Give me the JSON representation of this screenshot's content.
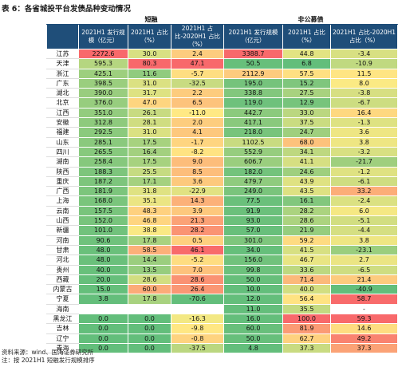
{
  "header": {
    "title": "表 6：各省城投平台发债品种变动情况"
  },
  "table": {
    "groups": [
      "短融",
      "非公募债"
    ],
    "columns": [
      "2021H1 发行规模（亿元）",
      "2021H1 占比（%）",
      "2021H1 占比-2020H1 占比（%）",
      "2021H1 发行规模（亿元）",
      "2021H1 占比（%）",
      "2021H1 占比-2020H1 占比（%）"
    ],
    "rows": [
      [
        "江苏",
        "2272.6",
        "30.0",
        "2.4",
        "3388.7",
        "44.8",
        "-3.4"
      ],
      [
        "天津",
        "595.3",
        "80.3",
        "47.1",
        "50.5",
        "6.8",
        "-10.9"
      ],
      [
        "浙江",
        "425.1",
        "11.6",
        "-5.7",
        "2112.9",
        "57.5",
        "11.5"
      ],
      [
        "广东",
        "398.5",
        "31.0",
        "-32.5",
        "195.0",
        "15.2",
        "8.0"
      ],
      [
        "湖北",
        "390.0",
        "31.7",
        "2.2",
        "338.8",
        "27.5",
        "-3.8"
      ],
      [
        "北京",
        "376.0",
        "47.0",
        "6.5",
        "119.0",
        "12.9",
        "-6.7"
      ],
      [
        "江西",
        "351.0",
        "26.1",
        "-11.0",
        "442.7",
        "33.0",
        "16.4"
      ],
      [
        "安徽",
        "312.8",
        "28.1",
        "2.0",
        "417.1",
        "37.5",
        "-1.3"
      ],
      [
        "福建",
        "292.5",
        "31.0",
        "4.1",
        "218.0",
        "24.7",
        "3.6"
      ],
      [
        "山东",
        "285.1",
        "17.5",
        "-1.7",
        "1102.5",
        "68.0",
        "3.8"
      ],
      [
        "四川",
        "265.5",
        "16.4",
        "-8.2",
        "552.9",
        "34.1",
        "-3.2"
      ],
      [
        "湖南",
        "258.4",
        "17.5",
        "9.0",
        "606.7",
        "41.1",
        "-21.7"
      ],
      [
        "陕西",
        "188.3",
        "25.5",
        "8.5",
        "182.0",
        "24.6",
        "-1.2"
      ],
      [
        "重庆",
        "187.2",
        "17.1",
        "3.6",
        "479.7",
        "43.9",
        "-6.1"
      ],
      [
        "广西",
        "181.9",
        "31.8",
        "-22.9",
        "249.0",
        "43.5",
        "33.2"
      ],
      [
        "上海",
        "168.0",
        "35.1",
        "14.3",
        "77.5",
        "16.1",
        "-2.4"
      ],
      [
        "云南",
        "157.5",
        "48.3",
        "3.9",
        "91.9",
        "28.2",
        "6.0"
      ],
      [
        "山西",
        "152.0",
        "46.8",
        "21.3",
        "93.0",
        "28.6",
        "-5.1"
      ],
      [
        "新疆",
        "101.0",
        "38.8",
        "28.2",
        "57.0",
        "21.9",
        "-4.4"
      ],
      [
        "河南",
        "90.6",
        "17.8",
        "0.5",
        "301.0",
        "59.2",
        "3.8"
      ],
      [
        "甘肃",
        "48.0",
        "58.5",
        "46.1",
        "34.0",
        "41.5",
        "-23.1"
      ],
      [
        "河北",
        "48.0",
        "14.4",
        "-5.2",
        "156.0",
        "46.7",
        "2.7"
      ],
      [
        "贵州",
        "40.0",
        "13.5",
        "7.0",
        "99.8",
        "33.6",
        "-6.5"
      ],
      [
        "西藏",
        "20.0",
        "28.6",
        "28.6",
        "50.0",
        "71.4",
        "21.4"
      ],
      [
        "内蒙古",
        "15.0",
        "60.0",
        "26.4",
        "10.0",
        "40.0",
        "-40.9"
      ],
      [
        "宁夏",
        "3.8",
        "17.8",
        "-70.6",
        "12.0",
        "56.4",
        "58.7"
      ],
      [
        "海南",
        null,
        null,
        null,
        "11.0",
        "35.5",
        "-"
      ],
      [
        "黑龙江",
        "0.0",
        "0.0",
        "-16.3",
        "16.0",
        "100.0",
        "59.3"
      ],
      [
        "吉林",
        "0.0",
        "0.0",
        "-9.8",
        "60.0",
        "81.9",
        "14.6"
      ],
      [
        "辽宁",
        "0.0",
        "0.0",
        "-0.8",
        "50.0",
        "62.7",
        "49.2"
      ],
      [
        "青海",
        "0.0",
        "0.0",
        "-37.5",
        "4.8",
        "37.3",
        "37.3"
      ]
    ]
  },
  "footer": {
    "source": "资料来源：wind、国海证券研究所",
    "note": "注：按 2021H1 短融发行规模排序"
  }
}
